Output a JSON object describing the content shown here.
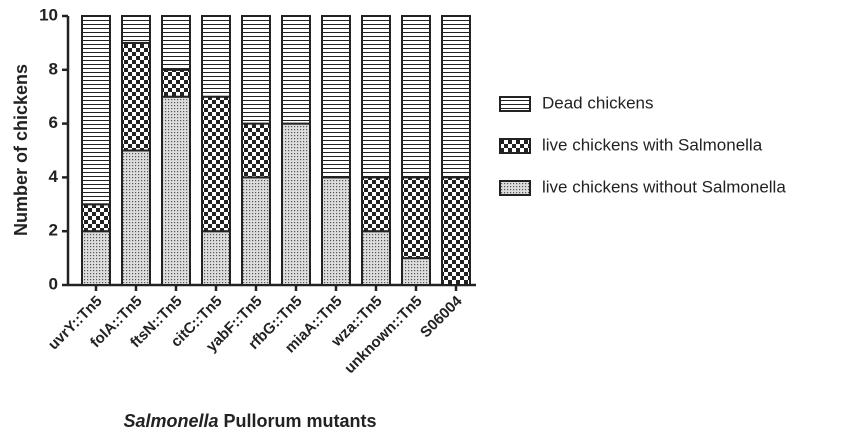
{
  "chart_data": {
    "type": "stacked-bar",
    "y_label": "Number of chickens",
    "x_label": "Salmonella Pullorum mutants",
    "categories": [
      "uvrY::Tn5",
      "folA::Tn5",
      "ftsN::Tn5",
      "citC::Tn5",
      "yabF::Tn5",
      "rfbG::Tn5",
      "miaA::Tn5",
      "wza::Tn5",
      "unknown::Tn5",
      "S06004"
    ],
    "series": [
      {
        "name": "Dead chickens",
        "color": "#222222",
        "pattern": "stripes",
        "values": [
          7,
          1,
          2,
          3,
          4,
          4,
          6,
          6,
          6,
          6
        ]
      },
      {
        "name": "live chickens with Salmonella",
        "color": "#222222",
        "pattern": "checker",
        "values": [
          1,
          4,
          1,
          5,
          2,
          0,
          0,
          2,
          3,
          4
        ]
      },
      {
        "name": "live chickens without Salmonella",
        "color": "#222222",
        "pattern": "dots",
        "values": [
          2,
          5,
          7,
          2,
          4,
          6,
          4,
          2,
          1,
          0
        ]
      }
    ],
    "ylim": [
      0,
      10
    ],
    "yticks": [
      0,
      2,
      4,
      6,
      8,
      10
    ],
    "grid": false
  }
}
